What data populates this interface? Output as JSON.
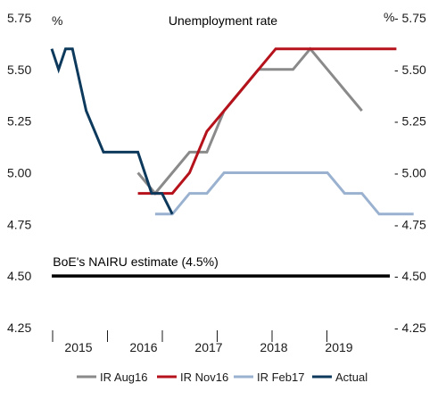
{
  "chart_data": {
    "type": "line",
    "title": "Unemployment rate",
    "unit_left": "%",
    "unit_right": "%",
    "ylim": [
      4.25,
      5.75
    ],
    "yticks": [
      4.25,
      4.5,
      4.75,
      5.0,
      5.25,
      5.5,
      5.75
    ],
    "ytick_labels": [
      "4.25",
      "4.50",
      "4.75",
      "5.00",
      "5.25",
      "5.50",
      "5.75"
    ],
    "ytick_labels_right": [
      "- 4.25",
      "- 4.50",
      "- 4.75",
      "- 5.00",
      "- 5.25",
      "- 5.50",
      "- 5.75"
    ],
    "xlim": [
      2015.0,
      2020.0
    ],
    "x_categories": [
      "2015",
      "2016",
      "2017",
      "2018",
      "2019"
    ],
    "grid": false,
    "legend_position": "bottom",
    "annotations": [
      {
        "text": "BoE's NAIRU estimate (4.5%)",
        "y": 4.5
      }
    ],
    "series": [
      {
        "name": "IR Aug16",
        "color": "#8a8a8a",
        "points": [
          [
            2016.25,
            5.0
          ],
          [
            2016.5,
            4.9
          ],
          [
            2016.75,
            5.0
          ],
          [
            2017.0,
            5.1
          ],
          [
            2017.25,
            5.1
          ],
          [
            2017.5,
            5.3
          ],
          [
            2017.75,
            5.4
          ],
          [
            2018.0,
            5.5
          ],
          [
            2018.25,
            5.5
          ],
          [
            2018.5,
            5.5
          ],
          [
            2018.75,
            5.6
          ],
          [
            2019.0,
            5.5
          ],
          [
            2019.25,
            5.4
          ],
          [
            2019.5,
            5.3
          ]
        ]
      },
      {
        "name": "IR Nov16",
        "color": "#b5121b",
        "points": [
          [
            2016.25,
            4.9
          ],
          [
            2016.5,
            4.9
          ],
          [
            2016.75,
            4.9
          ],
          [
            2017.0,
            5.0
          ],
          [
            2017.25,
            5.2
          ],
          [
            2017.5,
            5.3
          ],
          [
            2017.75,
            5.4
          ],
          [
            2018.0,
            5.5
          ],
          [
            2018.25,
            5.6
          ],
          [
            2018.5,
            5.6
          ],
          [
            2018.75,
            5.6
          ],
          [
            2019.0,
            5.6
          ],
          [
            2019.25,
            5.6
          ],
          [
            2019.5,
            5.6
          ],
          [
            2019.75,
            5.6
          ],
          [
            2020.0,
            5.6
          ]
        ]
      },
      {
        "name": "IR Feb17",
        "color": "#9ab2d0",
        "points": [
          [
            2016.5,
            4.8
          ],
          [
            2016.75,
            4.8
          ],
          [
            2017.0,
            4.9
          ],
          [
            2017.25,
            4.9
          ],
          [
            2017.5,
            5.0
          ],
          [
            2017.75,
            5.0
          ],
          [
            2018.0,
            5.0
          ],
          [
            2018.25,
            5.0
          ],
          [
            2018.5,
            5.0
          ],
          [
            2018.75,
            5.0
          ],
          [
            2019.0,
            5.0
          ],
          [
            2019.25,
            4.9
          ],
          [
            2019.5,
            4.9
          ],
          [
            2019.75,
            4.8
          ],
          [
            2020.0,
            4.8
          ],
          [
            2020.25,
            4.8
          ]
        ]
      },
      {
        "name": "Actual",
        "color": "#0d3a5c",
        "points": [
          [
            2015.0,
            5.6
          ],
          [
            2015.1,
            5.5
          ],
          [
            2015.2,
            5.6
          ],
          [
            2015.3,
            5.6
          ],
          [
            2015.5,
            5.3
          ],
          [
            2015.75,
            5.1
          ],
          [
            2016.0,
            5.1
          ],
          [
            2016.25,
            5.1
          ],
          [
            2016.45,
            4.9
          ],
          [
            2016.6,
            4.9
          ],
          [
            2016.75,
            4.8
          ]
        ]
      }
    ]
  }
}
